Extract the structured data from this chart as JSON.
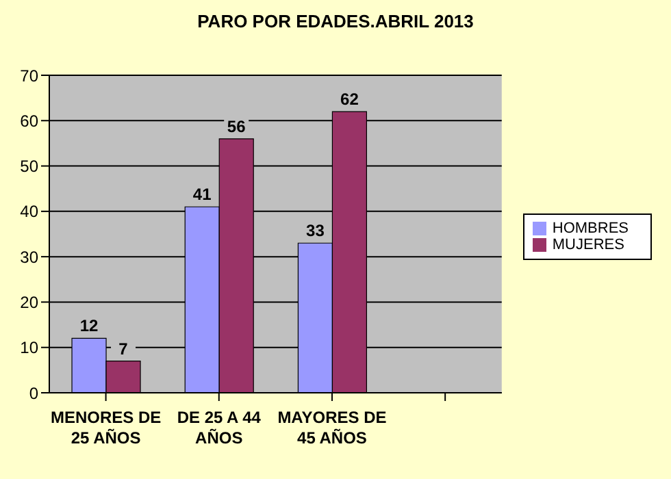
{
  "chart_data": {
    "type": "bar",
    "title": "PARO POR EDADES.ABRIL 2013",
    "categories": [
      "MENORES DE 25 AÑOS",
      "DE 25 A 44 AÑOS",
      "MAYORES DE 45 AÑOS",
      null
    ],
    "series": [
      {
        "name": "HOMBRES",
        "color": "#9999ff",
        "values": [
          12,
          41,
          33,
          null
        ]
      },
      {
        "name": "MUJERES",
        "color": "#993366",
        "values": [
          7,
          56,
          62,
          null
        ]
      }
    ],
    "ylim": [
      0,
      70
    ],
    "yticks": [
      0,
      10,
      20,
      30,
      40,
      50,
      60,
      70
    ],
    "grid": "y",
    "legend": "right",
    "data_labels": true
  }
}
